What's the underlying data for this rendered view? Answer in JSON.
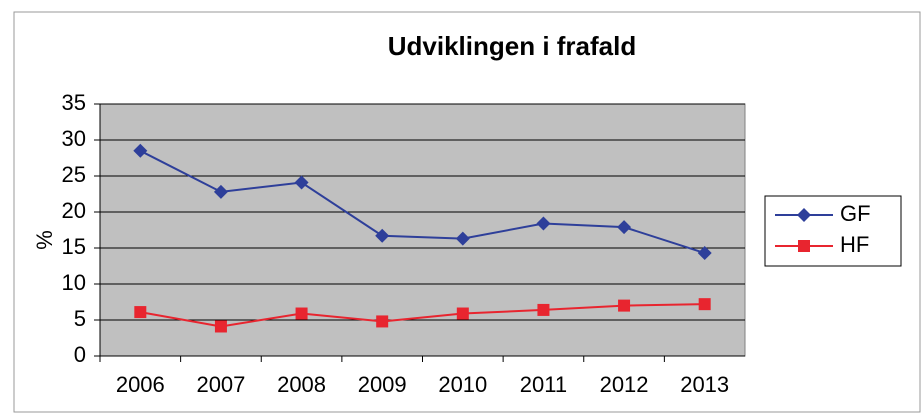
{
  "chart_data": {
    "type": "line",
    "title": "Udviklingen i frafald",
    "y_label": "%",
    "categories": [
      "2006",
      "2007",
      "2008",
      "2009",
      "2010",
      "2011",
      "2012",
      "2013"
    ],
    "series": [
      {
        "name": "GF",
        "color": "#2e3f9a",
        "marker": "diamond",
        "values": [
          28.5,
          22.8,
          24.1,
          16.7,
          16.3,
          18.4,
          17.9,
          14.3
        ]
      },
      {
        "name": "HF",
        "color": "#e8252f",
        "marker": "square",
        "values": [
          6.1,
          4.1,
          5.9,
          4.8,
          5.9,
          6.4,
          7.0,
          7.2
        ]
      }
    ],
    "ylim": [
      0,
      35
    ],
    "yticks": [
      0,
      5,
      10,
      15,
      20,
      25,
      30,
      35
    ],
    "grid": true,
    "legend": "right"
  }
}
